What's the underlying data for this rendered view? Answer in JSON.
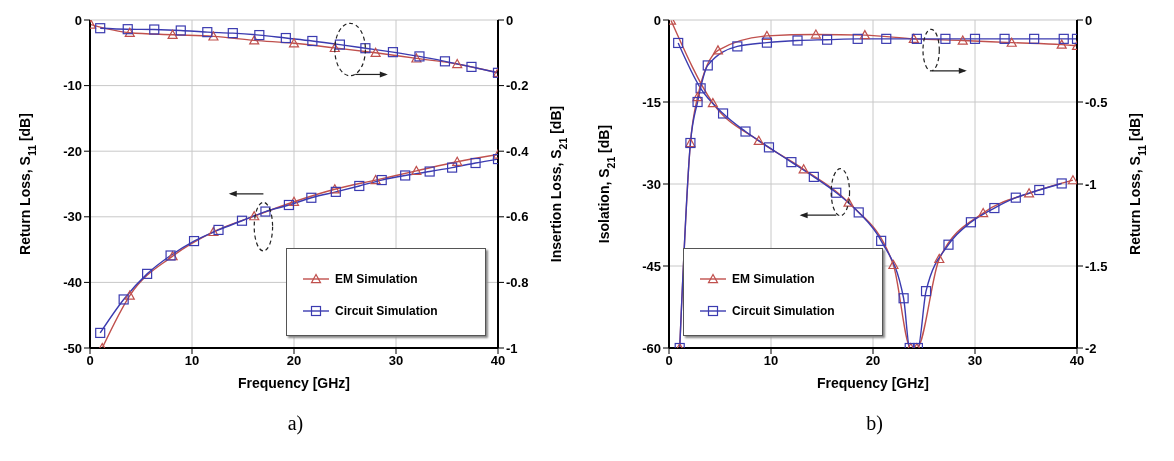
{
  "chart_data": [
    {
      "type": "line",
      "xlabel": "Frequency [GHz]",
      "ylabel": "Return Loss, S$_{11}$ [dB]",
      "y2label": "Insertion Loss, S$_{21}$ [dB]",
      "annotations": [
        "a)"
      ],
      "xlim": [
        0,
        40
      ],
      "xticks": [
        0,
        10,
        20,
        30,
        40
      ],
      "ylim": [
        -50,
        0
      ],
      "yticks": [
        -50,
        -40,
        -30,
        -20,
        -10,
        0
      ],
      "y2lim": [
        -1,
        0
      ],
      "y2ticks": [
        -1,
        -0.8,
        -0.6,
        -0.4,
        -0.2,
        0
      ],
      "grid": true,
      "legend": "bottom right",
      "line_style": "solid",
      "series": [
        {
          "name": "EM Simulation",
          "color": "#c0504d",
          "marker": "triangle",
          "x": [
            1.2,
            3.9,
            8.1,
            12.1,
            16.1,
            20,
            24,
            28,
            32,
            36,
            40
          ],
          "values": [
            -50,
            -42,
            -36,
            -32.3,
            -29.9,
            -27.7,
            -25.8,
            -24.4,
            -23,
            -21.6,
            -20.5
          ]
        },
        {
          "name": "Circuit Simulation",
          "color": "#3b3bb0",
          "marker": "square",
          "x": [
            1,
            3.3,
            5.6,
            7.9,
            10.2,
            12.6,
            14.9,
            17.2,
            19.5,
            21.7,
            24.1,
            26.4,
            28.6,
            30.9,
            33.3,
            35.5,
            37.8,
            40
          ],
          "values": [
            -47.7,
            -42.6,
            -38.7,
            -35.9,
            -33.7,
            -32,
            -30.6,
            -29.2,
            -28.2,
            -27.1,
            -26.2,
            -25.3,
            -24.4,
            -23.7,
            -23.1,
            -22.5,
            -21.8,
            -21.2
          ]
        },
        {
          "color": "#c0504d",
          "marker": "triangle",
          "axis": "y2",
          "x": [
            0.1,
            3.9,
            8.1,
            12.1,
            16.1,
            20,
            24,
            28,
            32,
            36,
            40
          ],
          "values": [
            -0.014,
            -0.039,
            -0.045,
            -0.05,
            -0.062,
            -0.071,
            -0.085,
            -0.1,
            -0.117,
            -0.134,
            -0.161
          ]
        },
        {
          "color": "#3b3bb0",
          "marker": "square",
          "axis": "y2",
          "x": [
            1,
            3.7,
            6.3,
            8.9,
            11.5,
            14,
            16.6,
            19.2,
            21.8,
            24.5,
            27,
            29.7,
            32.3,
            34.8,
            37.4,
            40
          ],
          "values": [
            -0.025,
            -0.028,
            -0.029,
            -0.032,
            -0.037,
            -0.04,
            -0.046,
            -0.055,
            -0.064,
            -0.075,
            -0.086,
            -0.098,
            -0.111,
            -0.126,
            -0.143,
            -0.161
          ]
        }
      ]
    },
    {
      "type": "line",
      "xlabel": "Frequency [GHz]",
      "ylabel": "Isolation, S$_{21}$ [dB]",
      "y2label": "Return Loss, S$_{11}$ [dB]",
      "annotations": [
        "b)"
      ],
      "xlim": [
        0,
        40
      ],
      "xticks": [
        0,
        10,
        20,
        30,
        40
      ],
      "ylim": [
        -60,
        0
      ],
      "yticks": [
        -60,
        -45,
        -30,
        -15,
        0
      ],
      "y2lim": [
        -2,
        0
      ],
      "y2ticks": [
        -2,
        -1.5,
        -1,
        -0.5,
        0
      ],
      "grid": true,
      "legend": "bottom left",
      "line_style": "solid",
      "series": [
        {
          "name": "EM Simulation",
          "color": "#c0504d",
          "marker": "triangle",
          "x": [
            0.2,
            4.3,
            8.8,
            13.2,
            17.6,
            22,
            23.7,
            24.3,
            26.5,
            30.8,
            35.3,
            39.6
          ],
          "values": [
            -0.1,
            -15.2,
            -22.1,
            -27.3,
            -33.4,
            -44.8,
            -60,
            -60,
            -43.7,
            -35.3,
            -31.7,
            -29.3
          ]
        },
        {
          "name": "Circuit Simulation",
          "color": "#3b3bb0",
          "marker": "square",
          "x": [
            0.9,
            3.1,
            5.3,
            7.5,
            9.8,
            12,
            14.2,
            16.4,
            18.6,
            20.8,
            23,
            23.6,
            24.4,
            25.2,
            27.4,
            29.6,
            31.9,
            34,
            36.3,
            38.5
          ],
          "values": [
            -4.2,
            -12.5,
            -17.1,
            -20.4,
            -23.3,
            -26,
            -28.7,
            -31.6,
            -35.2,
            -40.4,
            -50.9,
            -60,
            -60,
            -49.6,
            -41.1,
            -37,
            -34.4,
            -32.5,
            -31.1,
            -29.9
          ]
        },
        {
          "color": "#c0504d",
          "marker": "triangle",
          "axis": "y2",
          "x": [
            1.05,
            2.1,
            2.8,
            4.8,
            9.6,
            14.4,
            19.2,
            24,
            28.8,
            33.6,
            38.5,
            40
          ],
          "values": [
            -2,
            -0.75,
            -0.47,
            -0.185,
            -0.097,
            -0.088,
            -0.092,
            -0.115,
            -0.125,
            -0.138,
            -0.15,
            -0.157
          ]
        },
        {
          "color": "#3b3bb0",
          "marker": "square",
          "axis": "y2",
          "x": [
            1.05,
            2.1,
            2.8,
            3.8,
            6.7,
            9.6,
            12.6,
            15.5,
            18.5,
            21.3,
            24.3,
            27.1,
            30,
            32.9,
            35.8,
            38.7,
            40
          ],
          "values": [
            -2,
            -0.75,
            -0.5,
            -0.277,
            -0.161,
            -0.138,
            -0.125,
            -0.12,
            -0.115,
            -0.115,
            -0.115,
            -0.115,
            -0.115,
            -0.115,
            -0.115,
            -0.115,
            -0.115
          ]
        }
      ]
    }
  ]
}
